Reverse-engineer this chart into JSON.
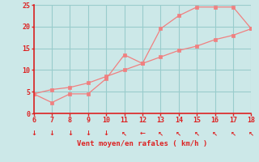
{
  "xlabel": "Vent moyen/en rafales ( km/h )",
  "x_values": [
    6,
    7,
    8,
    9,
    10,
    11,
    12,
    13,
    14,
    15,
    16,
    17,
    18
  ],
  "line1_y": [
    4.5,
    2.5,
    4.5,
    4.5,
    8.0,
    13.5,
    11.5,
    19.5,
    22.5,
    24.5,
    24.5,
    24.5,
    19.5
  ],
  "line2_y": [
    4.5,
    5.5,
    6.0,
    7.0,
    8.5,
    10.0,
    11.5,
    13.0,
    14.5,
    15.5,
    17.0,
    18.0,
    19.5
  ],
  "line_color": "#f08080",
  "marker_color": "#f08080",
  "bg_color": "#cce8e8",
  "grid_color": "#99cccc",
  "axis_color": "#dd2222",
  "tick_color": "#dd2222",
  "label_color": "#dd2222",
  "ylim": [
    0,
    25
  ],
  "xlim": [
    6,
    18
  ],
  "yticks": [
    0,
    5,
    10,
    15,
    20,
    25
  ],
  "xticks": [
    6,
    7,
    8,
    9,
    10,
    11,
    12,
    13,
    14,
    15,
    16,
    17,
    18
  ]
}
